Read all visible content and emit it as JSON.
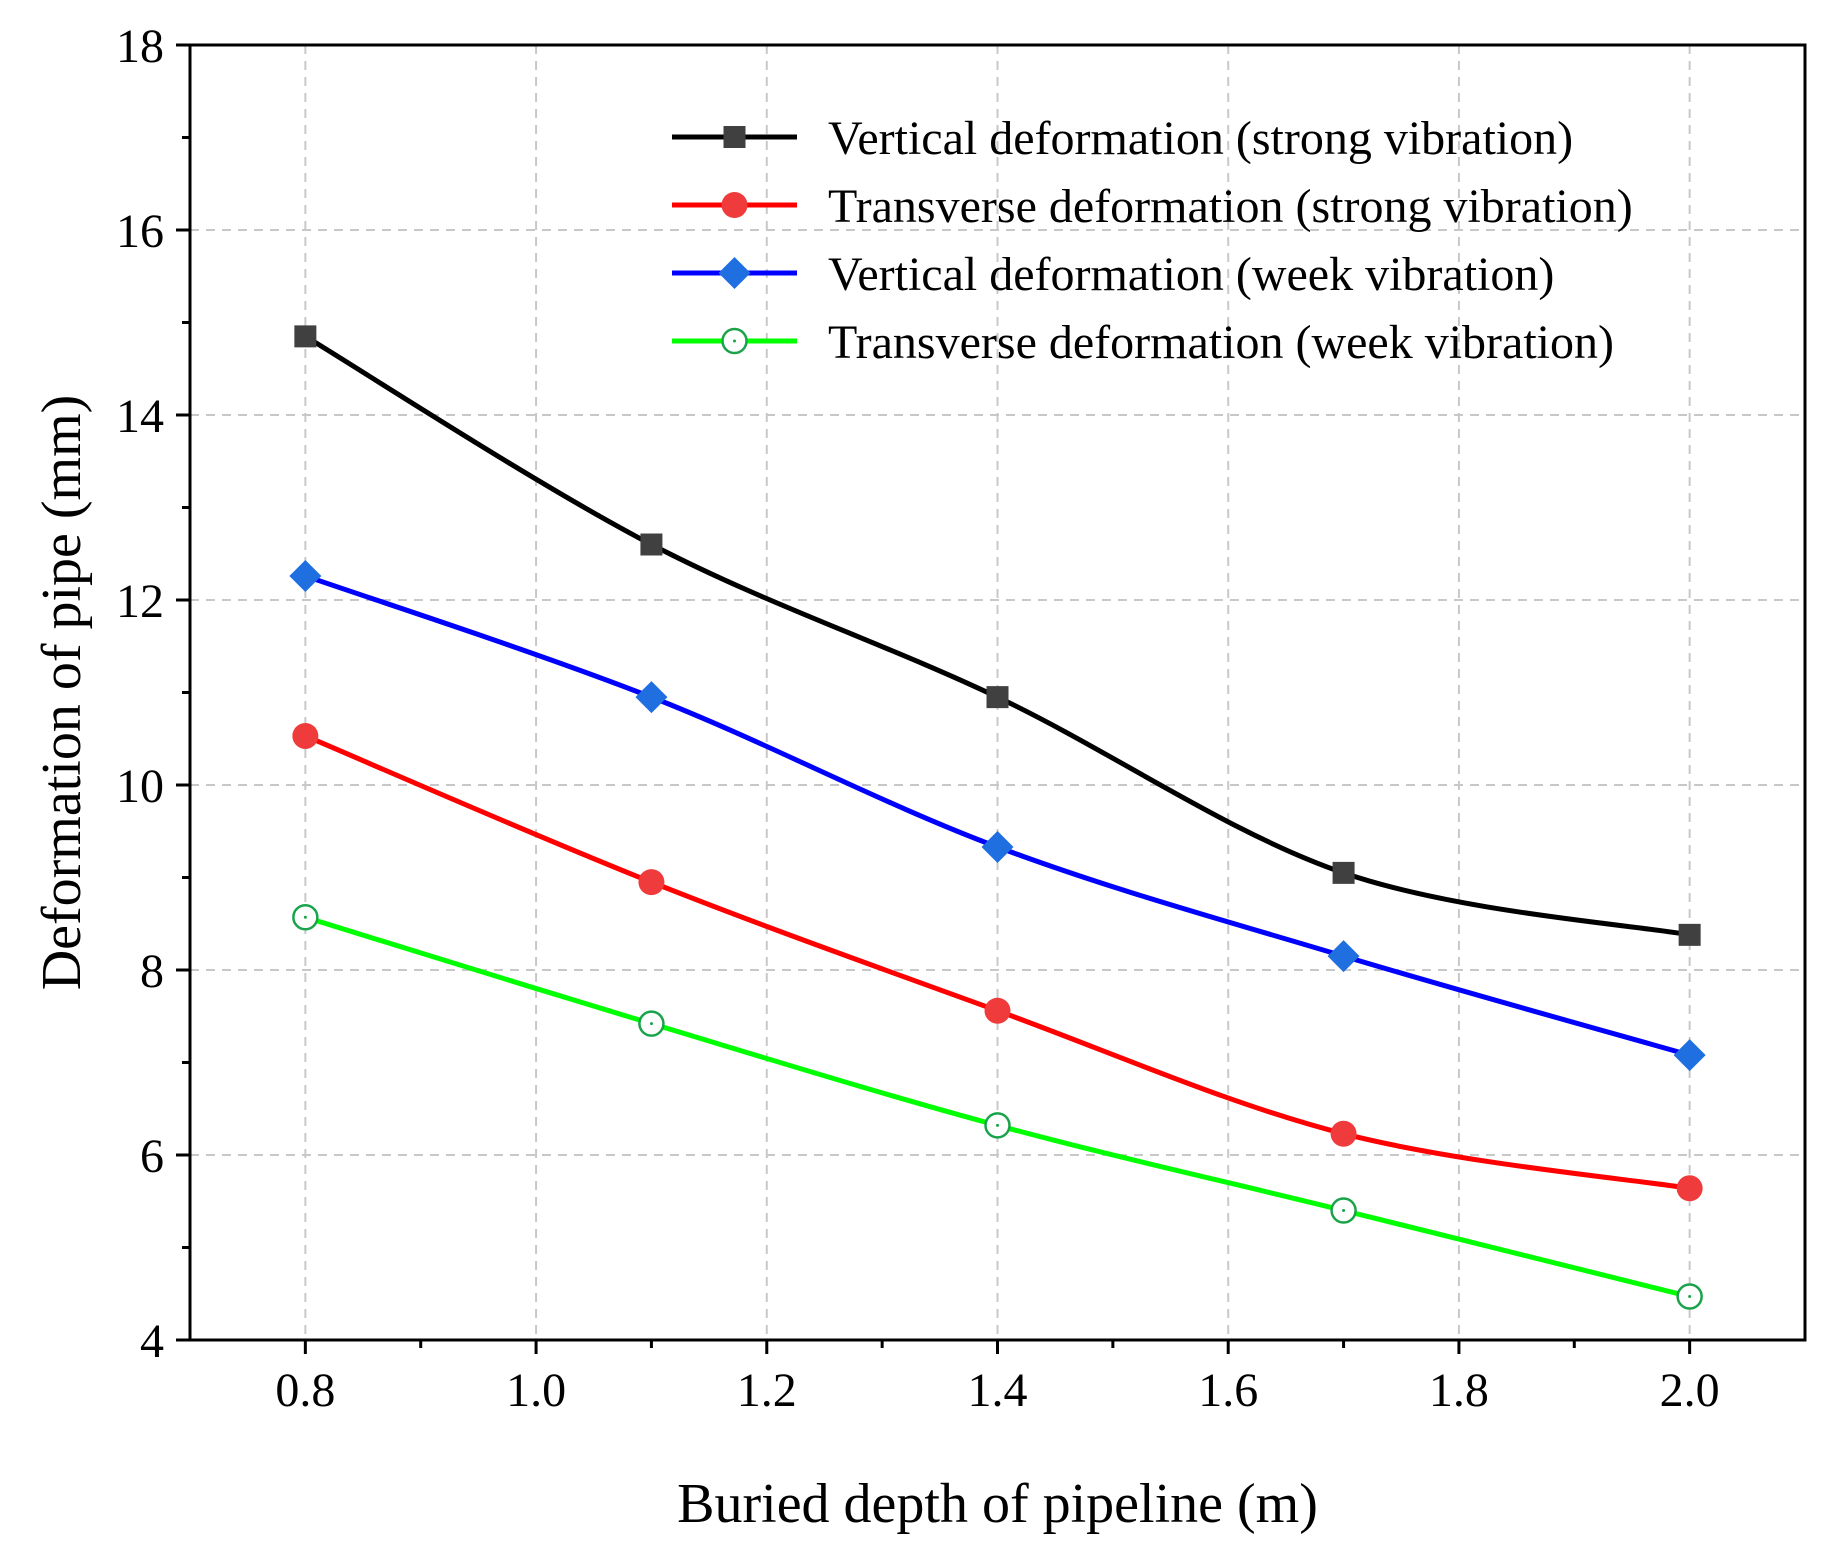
{
  "chart_data": {
    "type": "line",
    "title": "",
    "xlabel": "Buried depth of pipeline (m)",
    "ylabel": "Deformation of pipe (mm)",
    "xlim": [
      0.7,
      2.1
    ],
    "ylim": [
      4,
      18
    ],
    "xticks": [
      0.8,
      1.0,
      1.2,
      1.4,
      1.6,
      1.8,
      2.0
    ],
    "xtick_labels": [
      "0.8",
      "1.0",
      "1.2",
      "1.4",
      "1.6",
      "1.8",
      "2.0"
    ],
    "yticks": [
      4,
      6,
      8,
      10,
      12,
      14,
      16,
      18
    ],
    "ytick_labels": [
      "4",
      "6",
      "8",
      "10",
      "12",
      "14",
      "16",
      "18"
    ],
    "grid": true,
    "legend_position": "top-right",
    "x": [
      0.8,
      1.1,
      1.4,
      1.7,
      2.0
    ],
    "series": [
      {
        "name": "Vertical deformation (strong vibration)",
        "values": [
          14.85,
          12.6,
          10.95,
          9.05,
          8.38
        ],
        "line_color": "#000000",
        "marker": "square",
        "marker_color": "#404040"
      },
      {
        "name": "Transverse deformation (strong vibration)",
        "values": [
          10.53,
          8.95,
          7.56,
          6.23,
          5.64
        ],
        "line_color": "#ff0000",
        "marker": "circle",
        "marker_color": "#ef3b3b"
      },
      {
        "name": "Vertical deformation (week vibration)",
        "values": [
          12.26,
          10.95,
          9.33,
          8.15,
          7.08
        ],
        "line_color": "#0000ff",
        "marker": "diamond",
        "marker_color": "#1f6fe0"
      },
      {
        "name": "Transverse deformation (week vibration)",
        "values": [
          8.57,
          7.42,
          6.32,
          5.4,
          4.47
        ],
        "line_color": "#00ff00",
        "marker": "open-circle",
        "marker_color": "#1aa34a"
      }
    ]
  }
}
